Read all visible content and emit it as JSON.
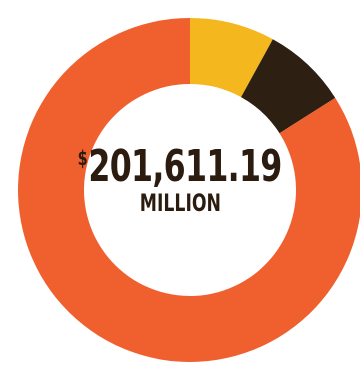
{
  "chart_data": {
    "type": "pie",
    "donut": true,
    "legend": "none",
    "title": "",
    "center_label": {
      "currency": "$",
      "amount": "201,611.19",
      "unit": "MILLION"
    },
    "slices": [
      {
        "name": "",
        "value": 8,
        "color": "#f4b71e"
      },
      {
        "name": "",
        "value": 8,
        "color": "#2d1f12"
      },
      {
        "name": "",
        "value": 84,
        "color": "#f0602e"
      }
    ]
  }
}
